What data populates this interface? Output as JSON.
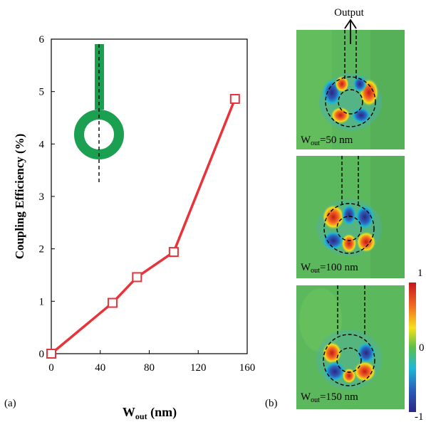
{
  "chart_data": {
    "type": "line",
    "x": [
      0,
      50,
      70,
      100,
      150
    ],
    "values": [
      0,
      0.97,
      1.46,
      1.94,
      4.86
    ],
    "xlim": [
      0,
      160
    ],
    "ylim": [
      0,
      6
    ],
    "xticks": [
      "0",
      "40",
      "80",
      "120",
      "160"
    ],
    "yticks": [
      "0",
      "1",
      "2",
      "3",
      "4",
      "5",
      "6"
    ],
    "xlabel_main": "W",
    "xlabel_sub": "out",
    "xlabel_unit": " (nm)",
    "ylabel": "Coupling Efficiency (%)",
    "line_color": "#e8333a",
    "marker": "open-square",
    "grid": false
  },
  "panel_labels": {
    "a": "(a)",
    "b": "(b)"
  },
  "field_maps": {
    "output_label": "Output",
    "panels": [
      {
        "w_main": "W",
        "w_sub": "out",
        "w_value": "=50 nm"
      },
      {
        "w_main": "W",
        "w_sub": "out",
        "w_value": "=100 nm"
      },
      {
        "w_main": "W",
        "w_sub": "out",
        "w_value": "=150 nm"
      }
    ],
    "colorbar": {
      "max": "1",
      "mid": "0",
      "min": "-1"
    }
  },
  "colors": {
    "ring": "#1aa050",
    "field_bg": "#5cb85c"
  }
}
